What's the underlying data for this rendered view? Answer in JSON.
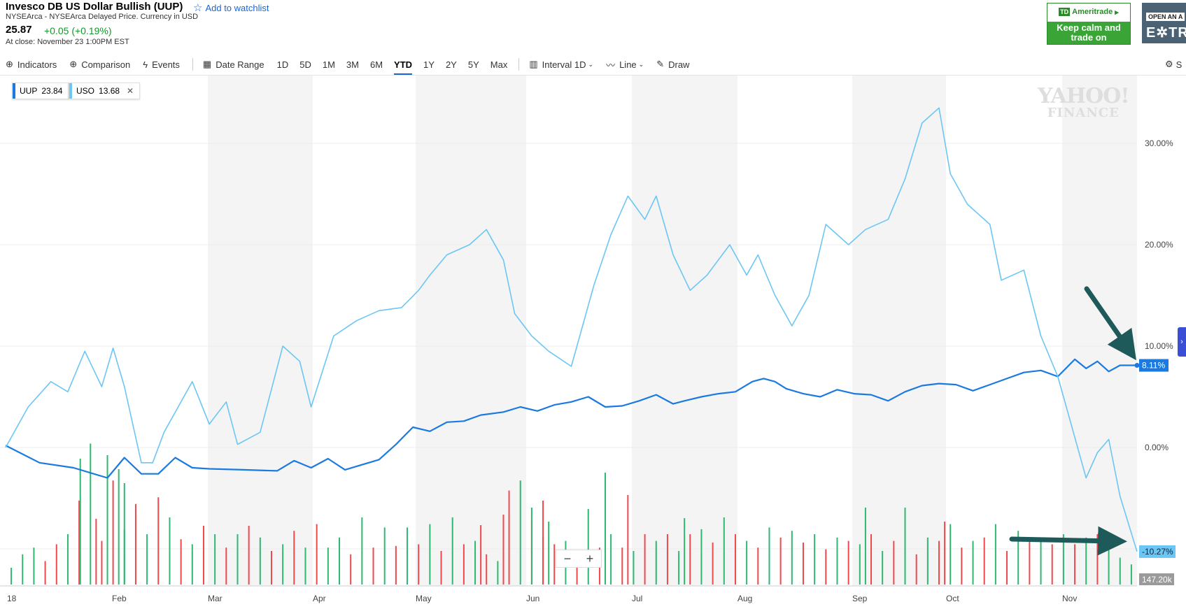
{
  "header": {
    "title": "Invesco DB US Dollar Bullish (UUP)",
    "watchlist_label": "Add to watchlist",
    "exchange_info": "NYSEArca - NYSEArca Delayed Price. Currency in USD",
    "price": "25.87",
    "change": "+0.05 (+0.19%)",
    "close_info": "At close: November 23 1:00PM EST"
  },
  "ads": {
    "ad1_brand": "Ameritrade",
    "ad1_logo": "TD",
    "ad1_tagline": "Keep calm and trade on",
    "ad2_top": "OPEN AN A",
    "ad2_main": "E✲TR"
  },
  "toolbar": {
    "indicators": "Indicators",
    "comparison": "Comparison",
    "events": "Events",
    "date_range": "Date Range",
    "ranges": [
      "1D",
      "5D",
      "1M",
      "3M",
      "6M",
      "YTD",
      "1Y",
      "2Y",
      "5Y",
      "Max"
    ],
    "active_range": "YTD",
    "interval_label": "Interval",
    "interval_value": "1D",
    "line_label": "Line",
    "draw_label": "Draw",
    "settings_label": "S"
  },
  "legend": {
    "uup_label": "UUP",
    "uup_value": "23.84",
    "uso_label": "USO",
    "uso_value": "13.68"
  },
  "watermark": {
    "line1": "YAHOO!",
    "line2": "FINANCE"
  },
  "colors": {
    "uup": "#1a7ae0",
    "uso": "#6cc6f4",
    "vol_up": "#2eb872",
    "vol_down": "#f0494d",
    "arrow": "#1f5a5a",
    "band": "#f4f4f4"
  },
  "chart_data": {
    "type": "line",
    "x_tick_labels": [
      "18",
      "Feb",
      "Mar",
      "Apr",
      "May",
      "Jun",
      "Jul",
      "Aug",
      "Sep",
      "Oct",
      "Nov"
    ],
    "y_tick_labels": [
      "30.00%",
      "20.00%",
      "10.00%",
      "0.00%"
    ],
    "ylim": [
      -13.5,
      35
    ],
    "grid": true,
    "legend_placement": "top-left",
    "series": [
      {
        "name": "UUP",
        "last_label": "8.11%",
        "points": [
          [
            0.0,
            0.2
          ],
          [
            0.03,
            -1.5
          ],
          [
            0.06,
            -2.0
          ],
          [
            0.075,
            -2.5
          ],
          [
            0.09,
            -3.0
          ],
          [
            0.105,
            -1.0
          ],
          [
            0.12,
            -2.6
          ],
          [
            0.135,
            -2.6
          ],
          [
            0.15,
            -1.0
          ],
          [
            0.165,
            -2.0
          ],
          [
            0.18,
            -2.1
          ],
          [
            0.21,
            -2.2
          ],
          [
            0.24,
            -2.3
          ],
          [
            0.255,
            -1.3
          ],
          [
            0.27,
            -2.0
          ],
          [
            0.285,
            -1.1
          ],
          [
            0.3,
            -2.2
          ],
          [
            0.33,
            -1.2
          ],
          [
            0.345,
            0.3
          ],
          [
            0.36,
            2.0
          ],
          [
            0.375,
            1.6
          ],
          [
            0.39,
            2.5
          ],
          [
            0.405,
            2.6
          ],
          [
            0.42,
            3.2
          ],
          [
            0.44,
            3.5
          ],
          [
            0.455,
            4.0
          ],
          [
            0.47,
            3.6
          ],
          [
            0.485,
            4.2
          ],
          [
            0.5,
            4.5
          ],
          [
            0.515,
            5.0
          ],
          [
            0.53,
            4.0
          ],
          [
            0.545,
            4.1
          ],
          [
            0.56,
            4.6
          ],
          [
            0.575,
            5.2
          ],
          [
            0.59,
            4.3
          ],
          [
            0.6,
            4.6
          ],
          [
            0.615,
            5.0
          ],
          [
            0.63,
            5.3
          ],
          [
            0.645,
            5.5
          ],
          [
            0.66,
            6.5
          ],
          [
            0.67,
            6.8
          ],
          [
            0.68,
            6.5
          ],
          [
            0.69,
            5.8
          ],
          [
            0.705,
            5.3
          ],
          [
            0.72,
            5.0
          ],
          [
            0.735,
            5.7
          ],
          [
            0.75,
            5.3
          ],
          [
            0.765,
            5.2
          ],
          [
            0.78,
            4.6
          ],
          [
            0.795,
            5.5
          ],
          [
            0.81,
            6.1
          ],
          [
            0.825,
            6.3
          ],
          [
            0.84,
            6.2
          ],
          [
            0.855,
            5.6
          ],
          [
            0.87,
            6.2
          ],
          [
            0.885,
            6.8
          ],
          [
            0.9,
            7.4
          ],
          [
            0.915,
            7.6
          ],
          [
            0.93,
            7.0
          ],
          [
            0.945,
            8.7
          ],
          [
            0.955,
            7.8
          ],
          [
            0.965,
            8.5
          ],
          [
            0.975,
            7.5
          ],
          [
            0.985,
            8.1
          ],
          [
            1.0,
            8.1
          ]
        ]
      },
      {
        "name": "USO",
        "last_label": "-10.27%",
        "points": [
          [
            0.0,
            0.0
          ],
          [
            0.02,
            4.0
          ],
          [
            0.04,
            6.5
          ],
          [
            0.055,
            5.5
          ],
          [
            0.07,
            9.5
          ],
          [
            0.085,
            6.0
          ],
          [
            0.095,
            9.8
          ],
          [
            0.105,
            6.0
          ],
          [
            0.12,
            -1.5
          ],
          [
            0.13,
            -1.5
          ],
          [
            0.14,
            1.5
          ],
          [
            0.165,
            6.5
          ],
          [
            0.18,
            2.3
          ],
          [
            0.195,
            4.5
          ],
          [
            0.205,
            0.3
          ],
          [
            0.225,
            1.5
          ],
          [
            0.245,
            10.0
          ],
          [
            0.26,
            8.5
          ],
          [
            0.27,
            4.0
          ],
          [
            0.29,
            11.0
          ],
          [
            0.31,
            12.5
          ],
          [
            0.33,
            13.5
          ],
          [
            0.35,
            13.8
          ],
          [
            0.365,
            15.5
          ],
          [
            0.375,
            17.0
          ],
          [
            0.39,
            19.0
          ],
          [
            0.41,
            20.0
          ],
          [
            0.425,
            21.5
          ],
          [
            0.44,
            18.5
          ],
          [
            0.45,
            13.2
          ],
          [
            0.465,
            11.0
          ],
          [
            0.48,
            9.5
          ],
          [
            0.5,
            8.0
          ],
          [
            0.52,
            16.0
          ],
          [
            0.535,
            21.0
          ],
          [
            0.55,
            24.8
          ],
          [
            0.565,
            22.5
          ],
          [
            0.575,
            24.8
          ],
          [
            0.59,
            19.0
          ],
          [
            0.605,
            15.5
          ],
          [
            0.62,
            17.0
          ],
          [
            0.64,
            20.0
          ],
          [
            0.655,
            17.0
          ],
          [
            0.665,
            19.0
          ],
          [
            0.68,
            15.0
          ],
          [
            0.695,
            12.0
          ],
          [
            0.71,
            15.0
          ],
          [
            0.725,
            22.0
          ],
          [
            0.745,
            20.0
          ],
          [
            0.76,
            21.5
          ],
          [
            0.78,
            22.5
          ],
          [
            0.795,
            26.5
          ],
          [
            0.81,
            32.0
          ],
          [
            0.825,
            33.5
          ],
          [
            0.835,
            27.0
          ],
          [
            0.85,
            24.0
          ],
          [
            0.87,
            22.0
          ],
          [
            0.88,
            16.5
          ],
          [
            0.9,
            17.5
          ],
          [
            0.915,
            11.0
          ],
          [
            0.93,
            7.0
          ],
          [
            0.94,
            3.0
          ],
          [
            0.955,
            -3.0
          ],
          [
            0.965,
            -0.5
          ],
          [
            0.975,
            0.8
          ],
          [
            0.985,
            -4.8
          ],
          [
            1.0,
            -10.27
          ]
        ]
      }
    ],
    "volume": {
      "label": "147.20k",
      "bars": [
        [
          0.005,
          10,
          1
        ],
        [
          0.015,
          18,
          1
        ],
        [
          0.025,
          22,
          1
        ],
        [
          0.035,
          14,
          0
        ],
        [
          0.045,
          24,
          0
        ],
        [
          0.055,
          30,
          1
        ],
        [
          0.065,
          50,
          0
        ],
        [
          0.075,
          84,
          1
        ],
        [
          0.085,
          26,
          0
        ],
        [
          0.095,
          62,
          0
        ],
        [
          0.105,
          33,
          1
        ],
        [
          0.115,
          48,
          0
        ],
        [
          0.125,
          30,
          1
        ],
        [
          0.135,
          52,
          0
        ],
        [
          0.145,
          40,
          1
        ],
        [
          0.155,
          27,
          0
        ],
        [
          0.165,
          24,
          1
        ],
        [
          0.175,
          35,
          0
        ],
        [
          0.185,
          30,
          1
        ],
        [
          0.195,
          22,
          0
        ],
        [
          0.205,
          30,
          1
        ],
        [
          0.215,
          35,
          0
        ],
        [
          0.225,
          28,
          1
        ],
        [
          0.235,
          20,
          0
        ],
        [
          0.245,
          24,
          1
        ],
        [
          0.255,
          32,
          0
        ],
        [
          0.265,
          22,
          1
        ],
        [
          0.275,
          36,
          0
        ],
        [
          0.285,
          22,
          1
        ],
        [
          0.295,
          28,
          1
        ],
        [
          0.305,
          18,
          0
        ],
        [
          0.315,
          40,
          1
        ],
        [
          0.325,
          22,
          0
        ],
        [
          0.335,
          34,
          1
        ],
        [
          0.345,
          23,
          0
        ],
        [
          0.355,
          34,
          1
        ],
        [
          0.365,
          24,
          0
        ],
        [
          0.375,
          36,
          1
        ],
        [
          0.385,
          20,
          0
        ],
        [
          0.395,
          40,
          1
        ],
        [
          0.405,
          24,
          0
        ],
        [
          0.415,
          26,
          1
        ],
        [
          0.425,
          18,
          0
        ],
        [
          0.435,
          14,
          1
        ],
        [
          0.445,
          56,
          0
        ],
        [
          0.455,
          62,
          1
        ],
        [
          0.465,
          38,
          0
        ],
        [
          0.475,
          28,
          1
        ],
        [
          0.485,
          24,
          0
        ],
        [
          0.495,
          26,
          1
        ],
        [
          0.505,
          20,
          0
        ],
        [
          0.515,
          45,
          1
        ],
        [
          0.525,
          22,
          0
        ],
        [
          0.535,
          30,
          1
        ],
        [
          0.545,
          22,
          0
        ],
        [
          0.555,
          20,
          1
        ],
        [
          0.565,
          30,
          0
        ],
        [
          0.575,
          26,
          1
        ],
        [
          0.585,
          30,
          0
        ],
        [
          0.595,
          20,
          1
        ],
        [
          0.605,
          30,
          0
        ],
        [
          0.615,
          33,
          1
        ],
        [
          0.625,
          25,
          0
        ],
        [
          0.635,
          40,
          1
        ],
        [
          0.645,
          30,
          0
        ],
        [
          0.655,
          26,
          1
        ],
        [
          0.665,
          22,
          0
        ],
        [
          0.675,
          34,
          1
        ],
        [
          0.685,
          28,
          0
        ],
        [
          0.695,
          32,
          1
        ],
        [
          0.705,
          25,
          0
        ],
        [
          0.715,
          30,
          1
        ],
        [
          0.725,
          21,
          0
        ],
        [
          0.735,
          28,
          1
        ],
        [
          0.745,
          26,
          0
        ],
        [
          0.755,
          24,
          1
        ],
        [
          0.765,
          30,
          0
        ],
        [
          0.775,
          20,
          1
        ],
        [
          0.785,
          26,
          0
        ],
        [
          0.795,
          30,
          1
        ],
        [
          0.805,
          18,
          0
        ],
        [
          0.815,
          28,
          1
        ],
        [
          0.825,
          26,
          0
        ],
        [
          0.835,
          36,
          1
        ],
        [
          0.845,
          22,
          0
        ],
        [
          0.855,
          26,
          1
        ],
        [
          0.865,
          28,
          0
        ],
        [
          0.875,
          36,
          1
        ],
        [
          0.885,
          20,
          0
        ],
        [
          0.895,
          32,
          1
        ],
        [
          0.905,
          26,
          0
        ],
        [
          0.915,
          26,
          1
        ],
        [
          0.925,
          24,
          0
        ],
        [
          0.935,
          30,
          1
        ],
        [
          0.945,
          24,
          0
        ],
        [
          0.955,
          28,
          1
        ],
        [
          0.965,
          30,
          0
        ],
        [
          0.975,
          24,
          1
        ],
        [
          0.985,
          16,
          1
        ],
        [
          0.995,
          12,
          1
        ]
      ]
    }
  }
}
